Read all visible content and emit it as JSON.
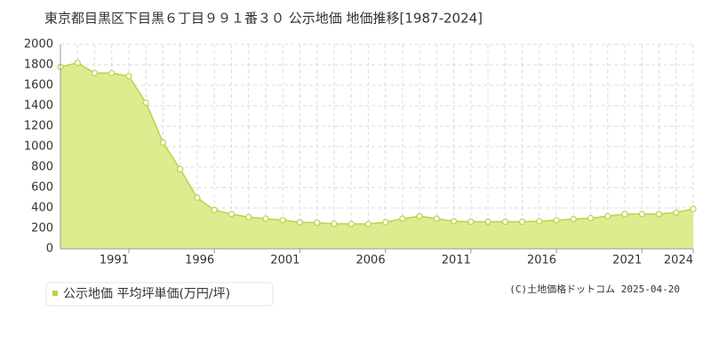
{
  "chart_data": {
    "type": "area",
    "title": "東京都目黒区下目黒６丁目９９１番３０ 公示地価 地価推移[1987-2024]",
    "x": [
      1987,
      1988,
      1989,
      1990,
      1991,
      1992,
      1993,
      1994,
      1995,
      1996,
      1997,
      1998,
      1999,
      2000,
      2001,
      2002,
      2003,
      2004,
      2005,
      2006,
      2007,
      2008,
      2009,
      2010,
      2011,
      2012,
      2013,
      2014,
      2015,
      2016,
      2017,
      2018,
      2019,
      2020,
      2021,
      2022,
      2023,
      2024
    ],
    "series": [
      {
        "name": "公示地価 平均坪単価(万円/坪)",
        "color": "#b5d647",
        "values": [
          1780,
          1820,
          1720,
          1720,
          1690,
          1430,
          1040,
          780,
          500,
          380,
          340,
          310,
          295,
          280,
          260,
          255,
          245,
          243,
          243,
          260,
          295,
          320,
          295,
          270,
          265,
          265,
          265,
          265,
          270,
          280,
          290,
          300,
          320,
          340,
          340,
          340,
          355,
          390
        ]
      }
    ],
    "xlim": [
      1987,
      2024
    ],
    "xticks": [
      1991,
      1996,
      2001,
      2006,
      2011,
      2016,
      2021,
      2024
    ],
    "ylim": [
      0,
      2000
    ],
    "yticks": [
      0,
      200,
      400,
      600,
      800,
      1000,
      1200,
      1400,
      1600,
      1800,
      2000
    ],
    "grid": true,
    "credit": "(C)土地価格ドットコム 2025-04-20"
  }
}
